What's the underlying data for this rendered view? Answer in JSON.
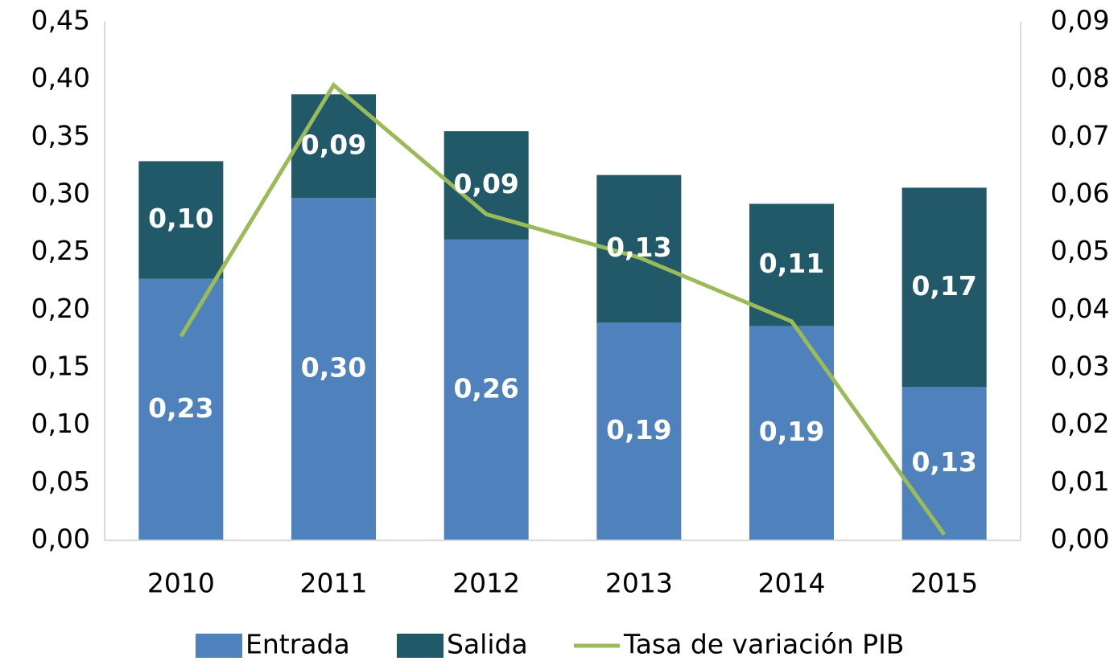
{
  "chart_data": {
    "type": "bar",
    "categories": [
      "2010",
      "2011",
      "2012",
      "2013",
      "2014",
      "2015"
    ],
    "stacked": true,
    "series": [
      {
        "name": "Entrada",
        "type": "bar",
        "color": "#4f81bd",
        "values": [
          0.227,
          0.297,
          0.261,
          0.189,
          0.186,
          0.133
        ],
        "value_labels": [
          "0,23",
          "0,30",
          "0,26",
          "0,19",
          "0,19",
          "0,13"
        ]
      },
      {
        "name": "Salida",
        "type": "bar",
        "color": "#215968",
        "values": [
          0.102,
          0.09,
          0.094,
          0.128,
          0.106,
          0.173
        ],
        "value_labels": [
          "0,10",
          "0,09",
          "0,09",
          "0,13",
          "0,11",
          "0,17"
        ]
      },
      {
        "name": "Tasa de variación PIB",
        "type": "line",
        "axis": "y2",
        "color": "#9bbb59",
        "values": [
          0.0354,
          0.079,
          0.0566,
          0.0491,
          0.038,
          0.001
        ]
      }
    ],
    "ylim": [
      0,
      0.45
    ],
    "yticks": [
      {
        "value": 0,
        "label": "0,00"
      },
      {
        "value": 0.05,
        "label": "0,05"
      },
      {
        "value": 0.1,
        "label": "0,10"
      },
      {
        "value": 0.15,
        "label": "0,15"
      },
      {
        "value": 0.2,
        "label": "0,20"
      },
      {
        "value": 0.25,
        "label": "0,25"
      },
      {
        "value": 0.3,
        "label": "0,30"
      },
      {
        "value": 0.35,
        "label": "0,35"
      },
      {
        "value": 0.4,
        "label": "0,40"
      },
      {
        "value": 0.45,
        "label": "0,45"
      }
    ],
    "y2lim": [
      0,
      0.09
    ],
    "y2ticks": [
      {
        "value": 0,
        "label": "0,00"
      },
      {
        "value": 0.01,
        "label": "0,01"
      },
      {
        "value": 0.02,
        "label": "0,02"
      },
      {
        "value": 0.03,
        "label": "0,03"
      },
      {
        "value": 0.04,
        "label": "0,04"
      },
      {
        "value": 0.05,
        "label": "0,05"
      },
      {
        "value": 0.06,
        "label": "0,06"
      },
      {
        "value": 0.07,
        "label": "0,07"
      },
      {
        "value": 0.08,
        "label": "0,08"
      },
      {
        "value": 0.09,
        "label": "0,09"
      }
    ],
    "legend": "bottom",
    "grid": false
  }
}
